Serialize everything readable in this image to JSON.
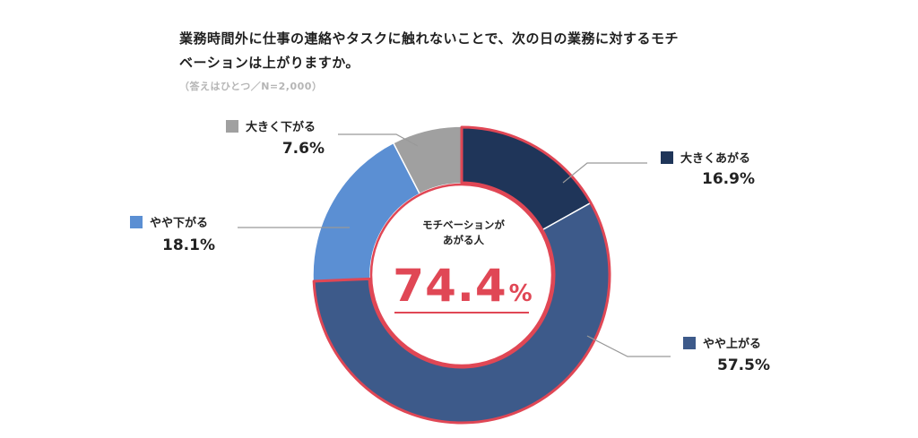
{
  "title": {
    "line1": "業務時間外に仕事の連絡やタスクに触れないことで、次の日の業務に対するモチ",
    "line2": "ベーションは上がりますか。"
  },
  "note": "（答えはひとつ／N=2,000）",
  "center": {
    "line1": "モチベーションが",
    "line2": "あがる人",
    "value": "74.4",
    "unit": "%"
  },
  "colors": {
    "highlight": "#e04755",
    "leader": "#999999"
  },
  "chart_data": {
    "type": "pie",
    "subtype": "donut",
    "title": "業務時間外に仕事の連絡やタスクに触れないことで、次の日の業務に対するモチベーションは上がりますか。",
    "categories": [
      "大きくあがる",
      "やや上がる",
      "やや下がる",
      "大きく下がる"
    ],
    "values": [
      16.9,
      57.5,
      18.1,
      7.6
    ],
    "labels": [
      "16.9%",
      "57.5%",
      "18.1%",
      "7.6%"
    ],
    "colors": [
      "#1f3559",
      "#3d5a8a",
      "#5b8fd3",
      "#a0a0a0"
    ],
    "highlighted": [
      "大きくあがる",
      "やや上がる"
    ],
    "highlight_total": 74.4
  }
}
